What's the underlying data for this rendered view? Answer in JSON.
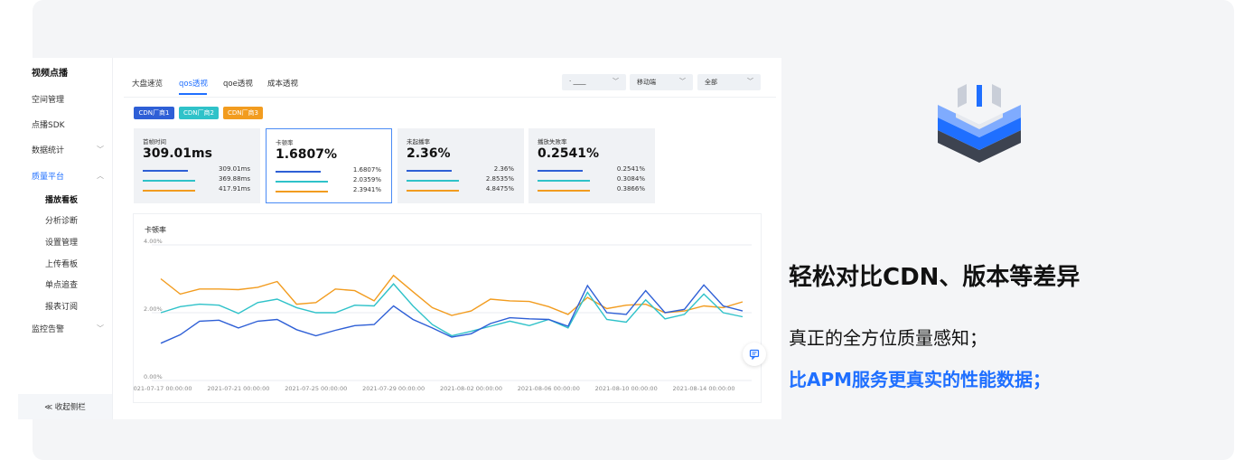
{
  "sidebar": {
    "title": "视频点播",
    "items": [
      {
        "label": "空间管理",
        "chevron": ""
      },
      {
        "label": "点播SDK",
        "chevron": ""
      },
      {
        "label": "数据统计",
        "chevron": "﹀"
      },
      {
        "label": "质量平台",
        "chevron": "︿"
      }
    ],
    "subitems": [
      "播放看板",
      "分析诊断",
      "设置管理",
      "上传看板",
      "单点追查",
      "报表订阅"
    ],
    "monitor": {
      "label": "监控告警",
      "chevron": "﹀"
    },
    "collapse": "≪ 收起侧栏"
  },
  "tabs": [
    "大盘速览",
    "qos透视",
    "qoe透视",
    "成本透视"
  ],
  "selects": [
    {
      "value": "·  ____",
      "chevron": "﹀"
    },
    {
      "value": "移动端",
      "chevron": "﹀"
    },
    {
      "value": "全部",
      "chevron": "﹀"
    }
  ],
  "cdn_tags": [
    "CDN厂商1",
    "CDN厂商2",
    "CDN厂商3"
  ],
  "colors": {
    "series1": "#2e5fd6",
    "series2": "#2fc2c9",
    "series3": "#f29c1f",
    "accent": "#1f6fff"
  },
  "cards": [
    {
      "title": "首帧时间",
      "value": "309.01ms",
      "rows": [
        "309.01ms",
        "369.88ms",
        "417.91ms"
      ]
    },
    {
      "title": "卡顿率",
      "value": "1.6807%",
      "rows": [
        "1.6807%",
        "2.0359%",
        "2.3941%"
      ]
    },
    {
      "title": "未起播率",
      "value": "2.36%",
      "rows": [
        "2.36%",
        "2.8535%",
        "4.8475%"
      ]
    },
    {
      "title": "播放失败率",
      "value": "0.2541%",
      "rows": [
        "0.2541%",
        "0.3084%",
        "0.3866%"
      ]
    }
  ],
  "chart_data": {
    "type": "line",
    "title": "卡顿率",
    "ylim": [
      0,
      4
    ],
    "yticks": [
      "0.00%",
      "2.00%",
      "4.00%"
    ],
    "xticks": [
      "2021-07-17 00:00:00",
      "2021-07-21 00:00:00",
      "2021-07-25 00:00:00",
      "2021-07-29 00:00:00",
      "2021-08-02 00:00:00",
      "2021-08-06 00:00:00",
      "2021-08-10 00:00:00",
      "2021-08-14 00:00:00"
    ],
    "x": [
      "2021-07-17",
      "2021-07-18",
      "2021-07-19",
      "2021-07-20",
      "2021-07-21",
      "2021-07-22",
      "2021-07-23",
      "2021-07-24",
      "2021-07-25",
      "2021-07-26",
      "2021-07-27",
      "2021-07-28",
      "2021-07-29",
      "2021-07-30",
      "2021-07-31",
      "2021-08-01",
      "2021-08-02",
      "2021-08-03",
      "2021-08-04",
      "2021-08-05",
      "2021-08-06",
      "2021-08-07",
      "2021-08-08",
      "2021-08-09",
      "2021-08-10",
      "2021-08-11",
      "2021-08-12",
      "2021-08-13",
      "2021-08-14",
      "2021-08-15",
      "2021-08-16"
    ],
    "series": [
      {
        "values": [
          1.1,
          1.35,
          1.75,
          1.78,
          1.55,
          1.75,
          1.8,
          1.5,
          1.32,
          1.48,
          1.62,
          1.65,
          2.2,
          1.8,
          1.55,
          1.28,
          1.38,
          1.68,
          1.85,
          1.82,
          1.8,
          1.6,
          2.8,
          2.0,
          1.95,
          2.65,
          2.0,
          2.1,
          2.82,
          2.2,
          2.05
        ]
      },
      {
        "values": [
          2.0,
          2.18,
          2.25,
          2.22,
          1.98,
          2.3,
          2.4,
          2.15,
          2.0,
          2.0,
          2.22,
          2.2,
          2.85,
          2.2,
          1.65,
          1.32,
          1.45,
          1.6,
          1.75,
          1.62,
          1.8,
          1.55,
          2.6,
          1.8,
          1.72,
          2.38,
          1.82,
          1.95,
          2.55,
          2.0,
          1.88
        ]
      },
      {
        "values": [
          3.0,
          2.55,
          2.7,
          2.7,
          2.68,
          2.75,
          2.92,
          2.25,
          2.3,
          2.7,
          2.65,
          2.35,
          3.1,
          2.62,
          2.15,
          1.92,
          2.05,
          2.4,
          2.35,
          2.33,
          2.18,
          1.95,
          2.45,
          2.12,
          2.22,
          2.25,
          2.0,
          2.05,
          2.2,
          2.15,
          2.32
        ]
      }
    ]
  },
  "headline": "轻松对比CDN、版本等差异",
  "line2": "真正的全方位质量感知；",
  "line3": "比APM服务更真实的性能数据；"
}
